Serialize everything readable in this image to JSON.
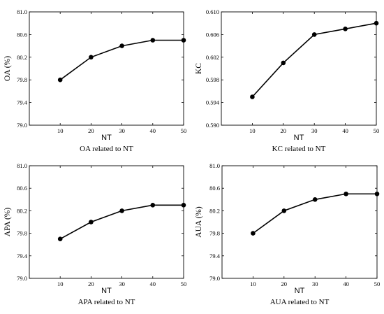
{
  "chart_data": [
    {
      "type": "line",
      "x": [
        10,
        20,
        30,
        40,
        50
      ],
      "xticks": [
        "10",
        "20",
        "30",
        "40",
        "50"
      ],
      "xlim": [
        0,
        50
      ],
      "xlabel": "NT",
      "ylabel": "OA (%)",
      "yticks": [
        "79.0",
        "79.4",
        "79.8",
        "80.2",
        "80.6",
        "81.0"
      ],
      "ylim": [
        79.0,
        81.0
      ],
      "series": [
        {
          "values": [
            79.8,
            80.2,
            80.4,
            80.5,
            80.5
          ]
        }
      ],
      "caption": "OA related to NT",
      "grid": false
    },
    {
      "type": "line",
      "x": [
        10,
        20,
        30,
        40,
        50
      ],
      "xticks": [
        "10",
        "20",
        "30",
        "40",
        "50"
      ],
      "xlim": [
        0,
        50
      ],
      "xlabel": "NT",
      "ylabel": "KC",
      "yticks": [
        "0.590",
        "0.594",
        "0.598",
        "0.602",
        "0.606",
        "0.610"
      ],
      "ylim": [
        0.59,
        0.61
      ],
      "series": [
        {
          "values": [
            0.595,
            0.601,
            0.606,
            0.607,
            0.608
          ]
        }
      ],
      "caption": "KC related to NT",
      "grid": false
    },
    {
      "type": "line",
      "x": [
        10,
        20,
        30,
        40,
        50
      ],
      "xticks": [
        "10",
        "20",
        "30",
        "40",
        "50"
      ],
      "xlim": [
        0,
        50
      ],
      "xlabel": "NT",
      "ylabel": "APA (%)",
      "yticks": [
        "79.0",
        "79.4",
        "79.8",
        "80.2",
        "80.6",
        "81.0"
      ],
      "ylim": [
        79.0,
        81.0
      ],
      "series": [
        {
          "values": [
            79.7,
            80.0,
            80.2,
            80.3,
            80.3
          ]
        }
      ],
      "caption": "APA related to NT",
      "grid": false
    },
    {
      "type": "line",
      "x": [
        10,
        20,
        30,
        40,
        50
      ],
      "xticks": [
        "10",
        "20",
        "30",
        "40",
        "50"
      ],
      "xlim": [
        0,
        50
      ],
      "xlabel": "NT",
      "ylabel": "AUA (%)",
      "yticks": [
        "79.0",
        "79.4",
        "79.8",
        "80.2",
        "80.6",
        "81.0"
      ],
      "ylim": [
        79.0,
        81.0
      ],
      "series": [
        {
          "values": [
            79.8,
            80.2,
            80.4,
            80.5,
            80.5
          ]
        }
      ],
      "caption": "AUA related to NT",
      "grid": false
    }
  ]
}
